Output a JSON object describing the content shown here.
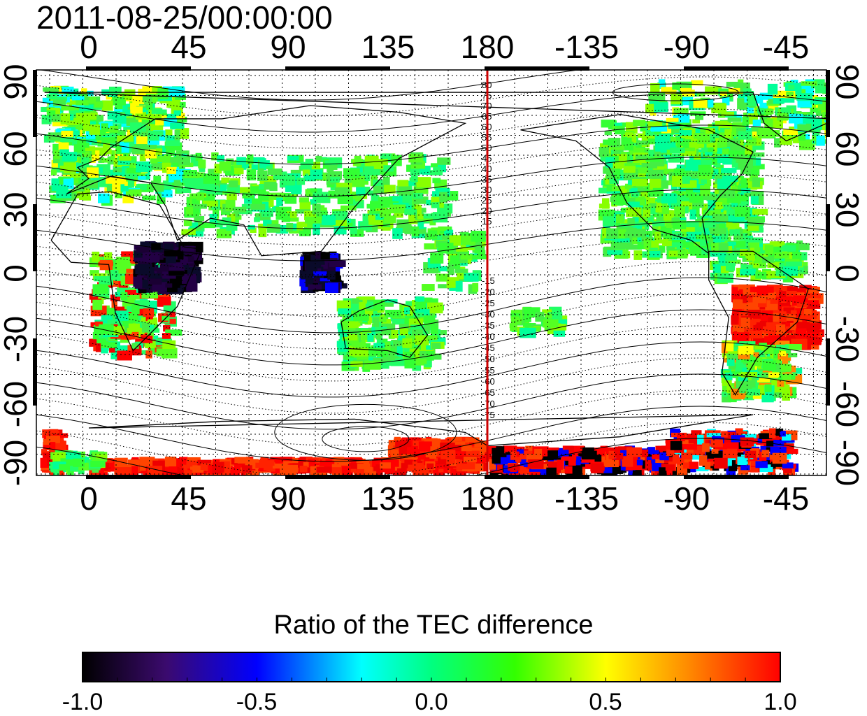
{
  "timestamp": "2011-08-25/00:00:00",
  "map": {
    "top_lon_labels": [
      "0",
      "45",
      "90",
      "135",
      "180",
      "-135",
      "-90",
      "-45"
    ],
    "bottom_lon_labels": [
      "0",
      "45",
      "90",
      "135",
      "180",
      "-135",
      "-90",
      "-45"
    ],
    "left_lat_labels": [
      "90",
      "60",
      "30",
      "0",
      "-30",
      "-60",
      "-90"
    ],
    "right_lat_labels": [
      "90",
      "60",
      "30",
      "0",
      "-30",
      "-60",
      "-90"
    ],
    "dateline_color": "#cc0000",
    "contour_labels_north": [
      "80",
      "75",
      "70",
      "65",
      "60",
      "55",
      "50",
      "45",
      "40",
      "35",
      "30",
      "25",
      "20",
      "15"
    ],
    "contour_labels_south": [
      "-15",
      "-20",
      "-25",
      "-30",
      "-35",
      "-40",
      "-45",
      "-50",
      "-55",
      "-60",
      "-65",
      "-70",
      "-75"
    ]
  },
  "colorbar": {
    "title": "Ratio of the TEC difference",
    "tick_labels": [
      "-1.0",
      "-0.5",
      "0.0",
      "0.5",
      "1.0"
    ],
    "stops": [
      "#000000",
      "#3b0a6e",
      "#0000ff",
      "#00ffff",
      "#00ff00",
      "#ffff00",
      "#ff8800",
      "#ff0000"
    ]
  }
}
